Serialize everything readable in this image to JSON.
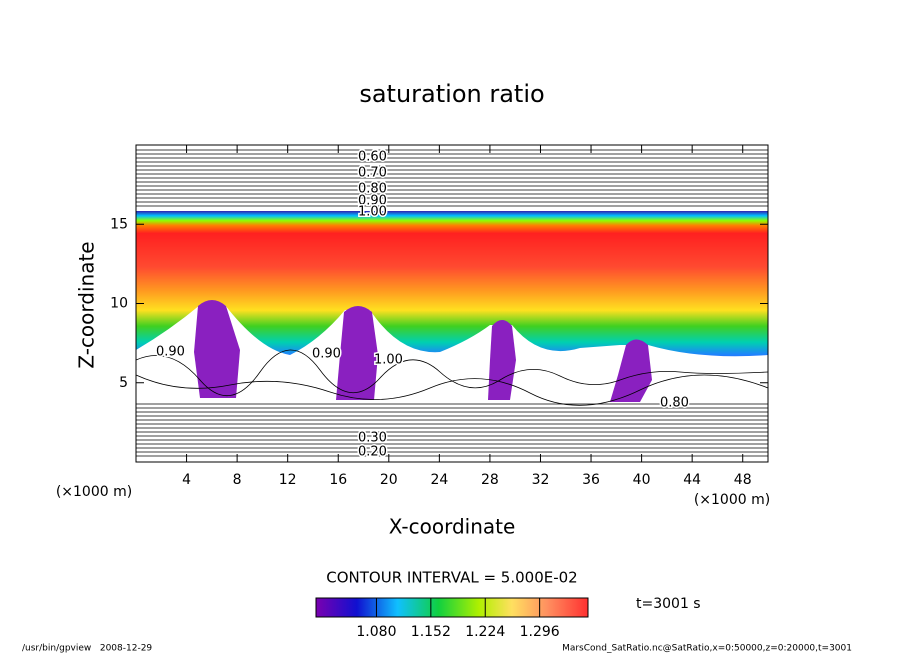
{
  "chart_data": {
    "type": "contour",
    "title": "saturation ratio",
    "xlabel": "X-coordinate",
    "ylabel": "Z-coordinate",
    "x_unit_left": "(×1000 m)",
    "x_unit_right": "(×1000 m)",
    "xlim": [
      0,
      50
    ],
    "xticks": [
      4,
      8,
      12,
      16,
      20,
      24,
      28,
      32,
      36,
      40,
      44,
      48
    ],
    "ylim": [
      0,
      20
    ],
    "yticks": [
      5,
      10,
      15
    ],
    "contour_labels": [
      "0.60",
      "0.70",
      "0.80",
      "0.90",
      "1.00",
      "0.30",
      "0.20",
      "0.90",
      "0.90",
      "1.00",
      "0.80"
    ],
    "contour_interval": "CONTOUR INTERVAL = 5.000E-02",
    "clim": [
      1.0,
      1.36
    ],
    "colorbar_ticks": [
      {
        "value": 1.08,
        "label": "1.080"
      },
      {
        "value": 1.152,
        "label": "1.152"
      },
      {
        "value": 1.224,
        "label": "1.224"
      },
      {
        "value": 1.296,
        "label": "1.296"
      }
    ],
    "time_label": "t=3001 s",
    "footer_left": "/usr/bin/gpview   2008-12-29",
    "footer_right": "MarsCond_SatRatio.nc@SatRatio,x=0:50000,z=0:20000,t=3001"
  }
}
